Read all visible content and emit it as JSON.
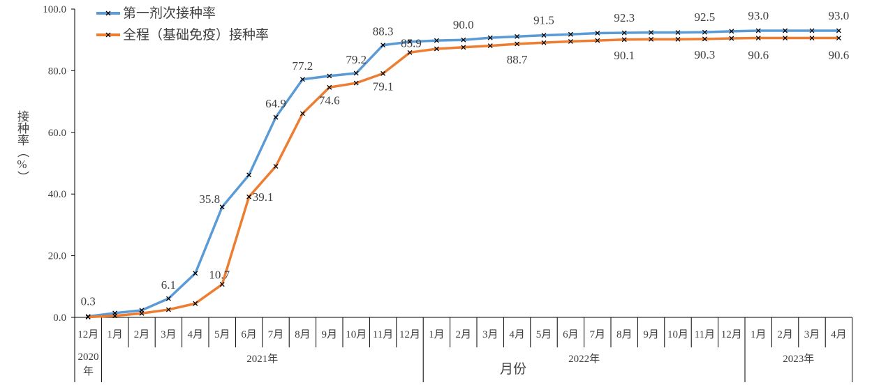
{
  "chart_data": {
    "type": "line",
    "title": "",
    "ylabel": "接种率（%）",
    "xlabel": "月份",
    "ylim": [
      0,
      100
    ],
    "yticks": [
      "0.0",
      "20.0",
      "40.0",
      "60.0",
      "80.0",
      "100.0"
    ],
    "grid": false,
    "legend": "top-left",
    "categories": [
      "12月",
      "1月",
      "2月",
      "3月",
      "4月",
      "5月",
      "6月",
      "7月",
      "8月",
      "9月",
      "10月",
      "11月",
      "12月",
      "1月",
      "2月",
      "3月",
      "4月",
      "5月",
      "6月",
      "7月",
      "8月",
      "9月",
      "10月",
      "11月",
      "12月",
      "1月",
      "2月",
      "3月",
      "4月"
    ],
    "year_groups": [
      {
        "label": "2020年",
        "count": 1
      },
      {
        "label": "2021年",
        "count": 12
      },
      {
        "label": "2022年",
        "count": 12
      },
      {
        "label": "2023年",
        "count": 4
      }
    ],
    "series": [
      {
        "name": "第一剂次接种率",
        "color": "#5b9bd5",
        "values": [
          0.3,
          1.4,
          2.3,
          6.1,
          14.3,
          35.8,
          46.2,
          64.9,
          77.2,
          78.3,
          79.2,
          88.3,
          89.4,
          89.8,
          90.0,
          90.7,
          91.1,
          91.5,
          91.8,
          92.2,
          92.3,
          92.4,
          92.4,
          92.5,
          92.8,
          93.0,
          93.0,
          93.0,
          93.0
        ],
        "data_labels": [
          {
            "index": 0,
            "text": "0.3"
          },
          {
            "index": 3,
            "text": "6.1"
          },
          {
            "index": 5,
            "text": "35.8"
          },
          {
            "index": 7,
            "text": "64.9"
          },
          {
            "index": 8,
            "text": "77.2"
          },
          {
            "index": 10,
            "text": "79.2"
          },
          {
            "index": 11,
            "text": "88.3"
          },
          {
            "index": 14,
            "text": "90.0"
          },
          {
            "index": 17,
            "text": "91.5"
          },
          {
            "index": 20,
            "text": "92.3"
          },
          {
            "index": 23,
            "text": "92.5"
          },
          {
            "index": 25,
            "text": "93.0"
          },
          {
            "index": 28,
            "text": "93.0"
          }
        ]
      },
      {
        "name": "全程（基础免疫）接种率",
        "color": "#ed7d31",
        "values": [
          0.1,
          0.5,
          1.3,
          2.5,
          4.5,
          10.7,
          39.1,
          49.0,
          66.1,
          74.6,
          76.0,
          79.1,
          85.9,
          87.1,
          87.6,
          88.1,
          88.7,
          89.1,
          89.5,
          89.8,
          90.1,
          90.2,
          90.2,
          90.3,
          90.5,
          90.6,
          90.6,
          90.6,
          90.6
        ],
        "data_labels": [
          {
            "index": 5,
            "text": "10.7"
          },
          {
            "index": 6,
            "text": "39.1"
          },
          {
            "index": 9,
            "text": "74.6"
          },
          {
            "index": 11,
            "text": "79.1"
          },
          {
            "index": 12,
            "text": "85.9"
          },
          {
            "index": 16,
            "text": "88.7"
          },
          {
            "index": 20,
            "text": "90.1"
          },
          {
            "index": 23,
            "text": "90.3"
          },
          {
            "index": 25,
            "text": "90.6"
          },
          {
            "index": 28,
            "text": "90.6"
          }
        ]
      }
    ]
  }
}
